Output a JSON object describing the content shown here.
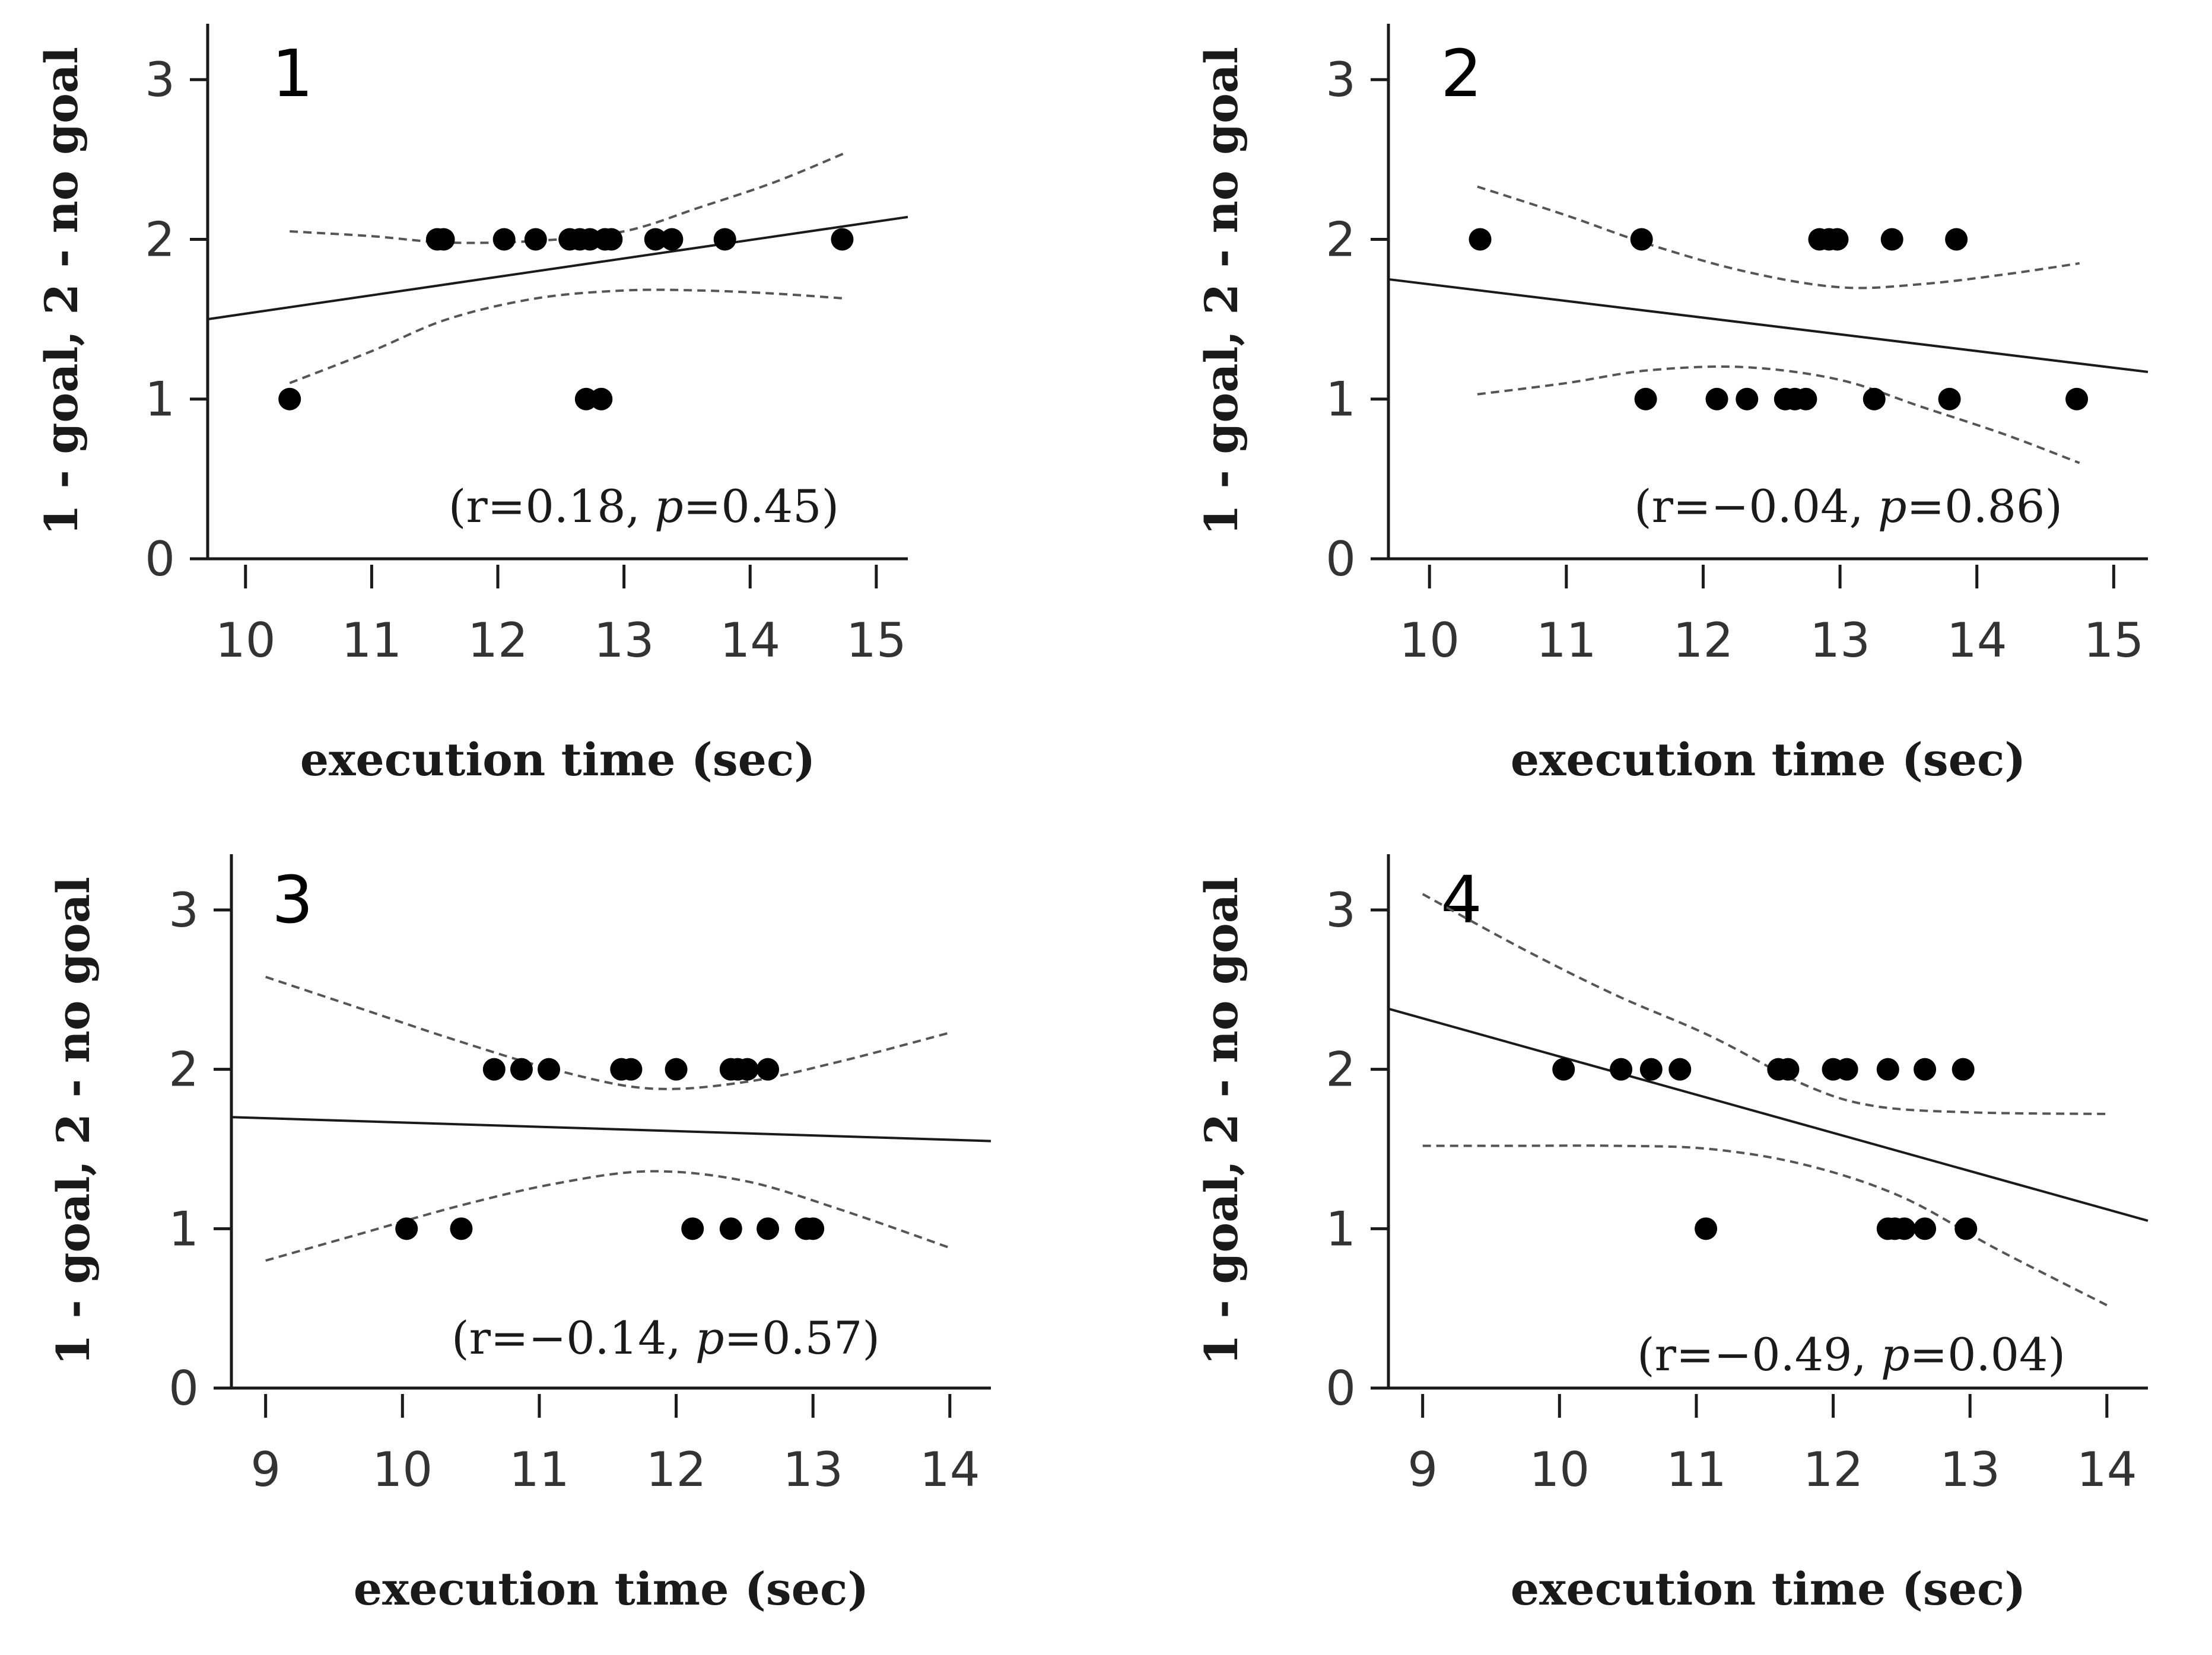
{
  "chart_data": [
    {
      "type": "scatter",
      "panel_label": "1",
      "xlabel": "execution time (sec)",
      "ylabel": "1 - goal, 2 - no goal",
      "xlim": [
        9.7,
        15.25
      ],
      "ylim": [
        0,
        3.35
      ],
      "xticks": [
        10,
        11,
        12,
        13,
        14,
        15
      ],
      "yticks": [
        0,
        1,
        2,
        3
      ],
      "annotation": {
        "prefix": "(r=0.18, ",
        "p_symbol": "p",
        "suffix": "=0.45)"
      },
      "points": [
        {
          "x": 10.35,
          "y": 1
        },
        {
          "x": 12.7,
          "y": 1
        },
        {
          "x": 12.82,
          "y": 1
        },
        {
          "x": 11.52,
          "y": 2
        },
        {
          "x": 11.57,
          "y": 2
        },
        {
          "x": 12.05,
          "y": 2
        },
        {
          "x": 12.3,
          "y": 2
        },
        {
          "x": 12.57,
          "y": 2
        },
        {
          "x": 12.65,
          "y": 2
        },
        {
          "x": 12.73,
          "y": 2
        },
        {
          "x": 12.85,
          "y": 2
        },
        {
          "x": 12.9,
          "y": 2
        },
        {
          "x": 13.25,
          "y": 2
        },
        {
          "x": 13.38,
          "y": 2
        },
        {
          "x": 13.8,
          "y": 2
        },
        {
          "x": 14.73,
          "y": 2
        }
      ],
      "fit_line": [
        [
          9.7,
          1.5
        ],
        [
          15.25,
          2.14
        ]
      ],
      "ci_upper": [
        [
          10.35,
          2.05
        ],
        [
          11.0,
          2.02
        ],
        [
          11.6,
          1.98
        ],
        [
          12.3,
          1.99
        ],
        [
          13.0,
          2.05
        ],
        [
          13.6,
          2.2
        ],
        [
          14.2,
          2.36
        ],
        [
          14.75,
          2.54
        ]
      ],
      "ci_lower": [
        [
          10.35,
          1.1
        ],
        [
          11.0,
          1.3
        ],
        [
          11.6,
          1.5
        ],
        [
          12.3,
          1.63
        ],
        [
          13.0,
          1.68
        ],
        [
          13.6,
          1.68
        ],
        [
          14.2,
          1.66
        ],
        [
          14.75,
          1.63
        ]
      ]
    },
    {
      "type": "scatter",
      "panel_label": "2",
      "xlabel": "execution time (sec)",
      "ylabel": "1 - goal, 2 - no goal",
      "xlim": [
        9.7,
        15.25
      ],
      "ylim": [
        0,
        3.35
      ],
      "xticks": [
        10,
        11,
        12,
        13,
        14,
        15
      ],
      "yticks": [
        0,
        1,
        2,
        3
      ],
      "annotation": {
        "prefix": "(r=−0.04, ",
        "p_symbol": "p",
        "suffix": "=0.86)"
      },
      "points": [
        {
          "x": 10.37,
          "y": 2
        },
        {
          "x": 11.55,
          "y": 2
        },
        {
          "x": 12.85,
          "y": 2
        },
        {
          "x": 12.92,
          "y": 2
        },
        {
          "x": 12.98,
          "y": 2
        },
        {
          "x": 13.38,
          "y": 2
        },
        {
          "x": 13.85,
          "y": 2
        },
        {
          "x": 11.58,
          "y": 1
        },
        {
          "x": 12.1,
          "y": 1
        },
        {
          "x": 12.32,
          "y": 1
        },
        {
          "x": 12.6,
          "y": 1
        },
        {
          "x": 12.67,
          "y": 1
        },
        {
          "x": 12.75,
          "y": 1
        },
        {
          "x": 13.25,
          "y": 1
        },
        {
          "x": 13.8,
          "y": 1
        },
        {
          "x": 14.73,
          "y": 1
        }
      ],
      "fit_line": [
        [
          9.7,
          1.75
        ],
        [
          15.25,
          1.17
        ]
      ],
      "ci_upper": [
        [
          10.35,
          2.33
        ],
        [
          11.0,
          2.15
        ],
        [
          11.6,
          1.97
        ],
        [
          12.3,
          1.8
        ],
        [
          13.0,
          1.7
        ],
        [
          13.6,
          1.72
        ],
        [
          14.2,
          1.78
        ],
        [
          14.75,
          1.85
        ]
      ],
      "ci_lower": [
        [
          10.35,
          1.03
        ],
        [
          11.0,
          1.1
        ],
        [
          11.6,
          1.18
        ],
        [
          12.3,
          1.2
        ],
        [
          13.0,
          1.12
        ],
        [
          13.6,
          0.95
        ],
        [
          14.2,
          0.78
        ],
        [
          14.75,
          0.6
        ]
      ]
    },
    {
      "type": "scatter",
      "panel_label": "3",
      "xlabel": "execution time (sec)",
      "ylabel": "1 - goal, 2 - no goal",
      "xlim": [
        8.75,
        14.3
      ],
      "ylim": [
        0,
        3.35
      ],
      "xticks": [
        9,
        10,
        11,
        12,
        13,
        14
      ],
      "yticks": [
        0,
        1,
        2,
        3
      ],
      "annotation": {
        "prefix": "(r=−0.14, ",
        "p_symbol": "p",
        "suffix": "=0.57)"
      },
      "points": [
        {
          "x": 10.67,
          "y": 2
        },
        {
          "x": 10.87,
          "y": 2
        },
        {
          "x": 11.07,
          "y": 2
        },
        {
          "x": 11.6,
          "y": 2
        },
        {
          "x": 11.67,
          "y": 2
        },
        {
          "x": 12.0,
          "y": 2
        },
        {
          "x": 12.4,
          "y": 2
        },
        {
          "x": 12.45,
          "y": 2
        },
        {
          "x": 12.52,
          "y": 2
        },
        {
          "x": 12.67,
          "y": 2
        },
        {
          "x": 10.03,
          "y": 1
        },
        {
          "x": 10.43,
          "y": 1
        },
        {
          "x": 12.12,
          "y": 1
        },
        {
          "x": 12.4,
          "y": 1
        },
        {
          "x": 12.67,
          "y": 1
        },
        {
          "x": 12.95,
          "y": 1
        },
        {
          "x": 13.0,
          "y": 1
        }
      ],
      "fit_line": [
        [
          8.75,
          1.7
        ],
        [
          14.3,
          1.55
        ]
      ],
      "ci_upper": [
        [
          9.0,
          2.58
        ],
        [
          9.7,
          2.38
        ],
        [
          10.4,
          2.18
        ],
        [
          11.1,
          2.0
        ],
        [
          11.8,
          1.88
        ],
        [
          12.5,
          1.92
        ],
        [
          13.2,
          2.05
        ],
        [
          14.0,
          2.23
        ]
      ],
      "ci_lower": [
        [
          9.0,
          0.8
        ],
        [
          9.7,
          0.97
        ],
        [
          10.4,
          1.14
        ],
        [
          11.1,
          1.28
        ],
        [
          11.8,
          1.36
        ],
        [
          12.5,
          1.3
        ],
        [
          13.2,
          1.12
        ],
        [
          14.0,
          0.88
        ]
      ]
    },
    {
      "type": "scatter",
      "panel_label": "4",
      "xlabel": "execution time (sec)",
      "ylabel": "1 - goal, 2 - no goal",
      "xlim": [
        8.75,
        14.3
      ],
      "ylim": [
        0,
        3.35
      ],
      "xticks": [
        9,
        10,
        11,
        12,
        13,
        14
      ],
      "yticks": [
        0,
        1,
        2,
        3
      ],
      "annotation": {
        "prefix": "(r=−0.49, ",
        "p_symbol": "p",
        "suffix": "=0.04)"
      },
      "points": [
        {
          "x": 10.03,
          "y": 2
        },
        {
          "x": 10.45,
          "y": 2
        },
        {
          "x": 10.67,
          "y": 2
        },
        {
          "x": 10.88,
          "y": 2
        },
        {
          "x": 11.6,
          "y": 2
        },
        {
          "x": 11.67,
          "y": 2
        },
        {
          "x": 12.0,
          "y": 2
        },
        {
          "x": 12.1,
          "y": 2
        },
        {
          "x": 12.4,
          "y": 2
        },
        {
          "x": 12.67,
          "y": 2
        },
        {
          "x": 12.95,
          "y": 2
        },
        {
          "x": 11.07,
          "y": 1
        },
        {
          "x": 12.4,
          "y": 1
        },
        {
          "x": 12.45,
          "y": 1
        },
        {
          "x": 12.52,
          "y": 1
        },
        {
          "x": 12.67,
          "y": 1
        },
        {
          "x": 12.97,
          "y": 1
        }
      ],
      "fit_line": [
        [
          8.75,
          2.38
        ],
        [
          14.3,
          1.05
        ]
      ],
      "ci_upper": [
        [
          9.0,
          3.1
        ],
        [
          9.7,
          2.77
        ],
        [
          10.4,
          2.47
        ],
        [
          11.1,
          2.21
        ],
        [
          11.8,
          1.9
        ],
        [
          12.3,
          1.77
        ],
        [
          13.0,
          1.73
        ],
        [
          14.0,
          1.72
        ]
      ],
      "ci_lower": [
        [
          9.0,
          1.52
        ],
        [
          9.7,
          1.52
        ],
        [
          10.4,
          1.52
        ],
        [
          11.1,
          1.5
        ],
        [
          11.8,
          1.4
        ],
        [
          12.5,
          1.2
        ],
        [
          13.2,
          0.87
        ],
        [
          14.0,
          0.52
        ]
      ]
    }
  ]
}
